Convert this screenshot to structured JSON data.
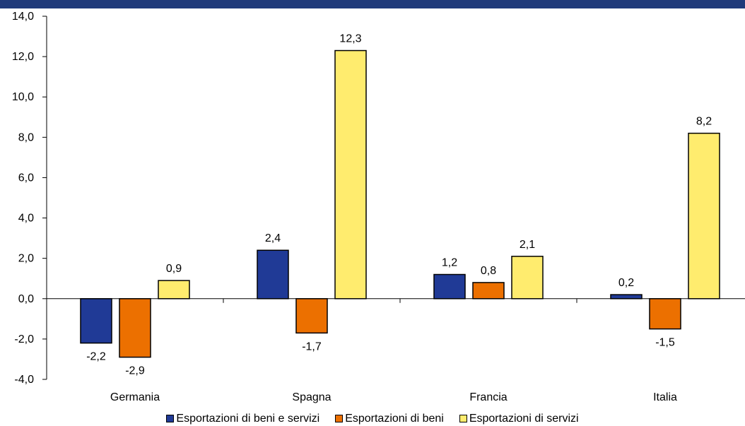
{
  "title": "",
  "chart_data": {
    "type": "bar",
    "categories": [
      "Germania",
      "Spagna",
      "Francia",
      "Italia"
    ],
    "series": [
      {
        "name": "Esportazioni di beni e servizi",
        "values": [
          -2.2,
          2.4,
          1.2,
          0.2
        ],
        "color": "#203a96"
      },
      {
        "name": "Esportazioni di beni",
        "values": [
          -2.9,
          -1.7,
          0.8,
          -1.5
        ],
        "color": "#ec7000"
      },
      {
        "name": "Esportazioni di servizi",
        "values": [
          0.9,
          12.3,
          2.1,
          8.2
        ],
        "color": "#ffec6e"
      }
    ],
    "data_labels": [
      [
        "-2,2",
        "2,4",
        "1,2",
        "0,2"
      ],
      [
        "-2,9",
        "-1,7",
        "0,8",
        "-1,5"
      ],
      [
        "0,9",
        "12,3",
        "2,1",
        "8,2"
      ]
    ],
    "y_ticks": [
      "14,0",
      "12,0",
      "10,0",
      "8,0",
      "6,0",
      "4,0",
      "2,0",
      "0,0",
      "-2,0",
      "-4,0"
    ],
    "ylim": [
      -4,
      14
    ],
    "grid": false,
    "legend_position": "bottom",
    "xlabel": "",
    "ylabel": ""
  }
}
